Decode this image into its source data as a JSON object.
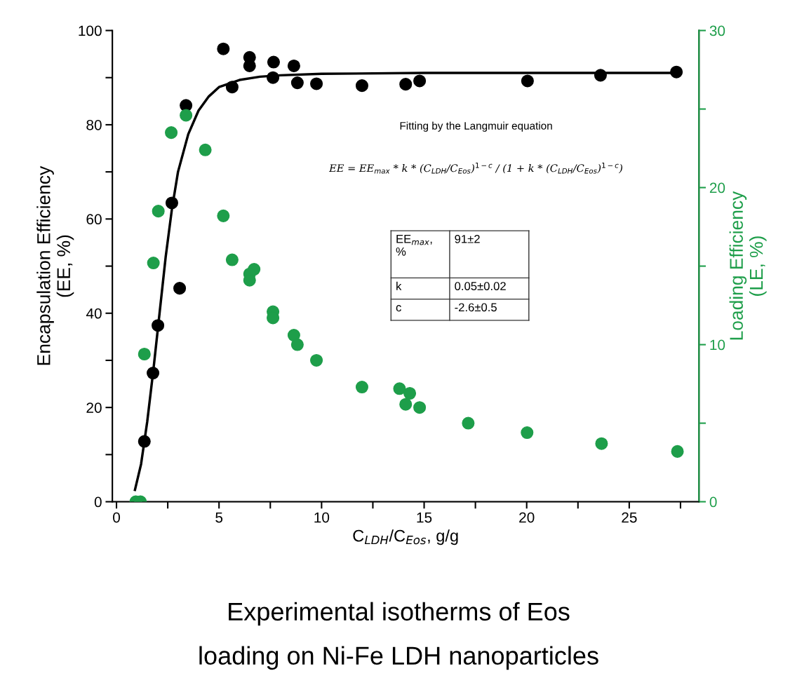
{
  "chart_data": {
    "type": "scatter",
    "xlabel": "C$_{LDH}$/C$_{Eos}$, g/g",
    "ylabel": "Encapsulation Efficiency\n(EE, %)",
    "y2label": "Loading Efficiency\n(LE, %)",
    "xlim": [
      -0.2,
      28.4
    ],
    "xticks": [
      0,
      {
        "value": 2.5,
        "label": null
      },
      5,
      {
        "value": 7.5,
        "label": null
      },
      10,
      {
        "value": 12.5,
        "label": null
      },
      15,
      {
        "value": 17.5,
        "label": null
      },
      20,
      {
        "value": 22.5,
        "label": null
      },
      25,
      {
        "value": 27.5,
        "label": null
      }
    ],
    "ylim": [
      0,
      100
    ],
    "yticks": [
      0,
      {
        "value": 10,
        "label": null
      },
      20,
      {
        "value": 30,
        "label": null
      },
      40,
      {
        "value": 50,
        "label": null
      },
      60,
      {
        "value": 70,
        "label": null
      },
      80,
      {
        "value": 90,
        "label": null
      },
      100
    ],
    "y2lim": [
      0,
      30
    ],
    "y2ticks": [
      0,
      {
        "value": 5,
        "label": null
      },
      10,
      {
        "value": 15,
        "label": null
      },
      20,
      {
        "value": 25,
        "label": null
      },
      30
    ],
    "marker": "circle",
    "grid": false,
    "legend": false,
    "series": [
      {
        "color": "#000000",
        "x": [
          5.21,
          6.49,
          6.49,
          7.66,
          8.65,
          7.63,
          5.64,
          8.82,
          9.75,
          11.97,
          14.1,
          14.78,
          20.04,
          23.6,
          27.3,
          3.39,
          2.7,
          3.08,
          2.02,
          1.78,
          1.36
        ],
        "values": [
          96.1,
          94.3,
          92.5,
          93.3,
          92.5,
          90.0,
          88.0,
          88.9,
          88.7,
          88.3,
          88.6,
          89.3,
          89.3,
          90.5,
          91.2,
          84.1,
          63.4,
          45.3,
          37.4,
          27.3,
          12.8
        ]
      },
      {
        "color": "#1e9e4a",
        "axis": "y2",
        "x": [
          3.39,
          2.67,
          4.33,
          2.04,
          5.21,
          1.8,
          5.64,
          6.71,
          6.49,
          6.49,
          7.63,
          7.63,
          8.65,
          8.82,
          9.75,
          1.36,
          11.97,
          13.8,
          14.3,
          14.1,
          14.78,
          17.15,
          20.02,
          23.65,
          27.35,
          0.94,
          1.17
        ],
        "values": [
          24.6,
          23.5,
          22.4,
          18.5,
          18.2,
          15.2,
          15.4,
          14.8,
          14.5,
          14.1,
          12.1,
          11.7,
          10.6,
          10.0,
          9.0,
          9.4,
          7.3,
          7.2,
          6.9,
          6.2,
          6.0,
          5.0,
          4.4,
          3.7,
          3.2,
          0,
          0
        ]
      },
      {
        "type": "line",
        "color": "#000000",
        "marker": "none",
        "line_style": "solid",
        "x": [
          0.9,
          1.2,
          1.5,
          1.8,
          2.1,
          2.4,
          2.7,
          3.0,
          3.5,
          4,
          4.5,
          5,
          6,
          7,
          8,
          10,
          15,
          20,
          27.5
        ],
        "values": [
          2.5,
          8,
          17,
          28,
          40,
          52,
          62,
          70,
          78,
          83,
          86,
          88,
          89.5,
          90.2,
          90.5,
          90.8,
          91,
          91,
          91
        ]
      }
    ],
    "annotations": [
      "Fitting by the Langmuir equation",
      "EE = EE$_{max}$ * k * (C$_{LDH}$/C$_{Eos}$)$^{1−c}$ / (1 + k * (C$_{LDH}$/C$_{Eos}$)$^{1−c}$)",
      "EE$_{max}$,\n%",
      "91±2",
      "k",
      "0.05±0.02",
      "c",
      "-2.6±0.5",
      "Experimental isotherms of Eos",
      "loading on Ni-Fe LDH nanoparticles"
    ]
  }
}
